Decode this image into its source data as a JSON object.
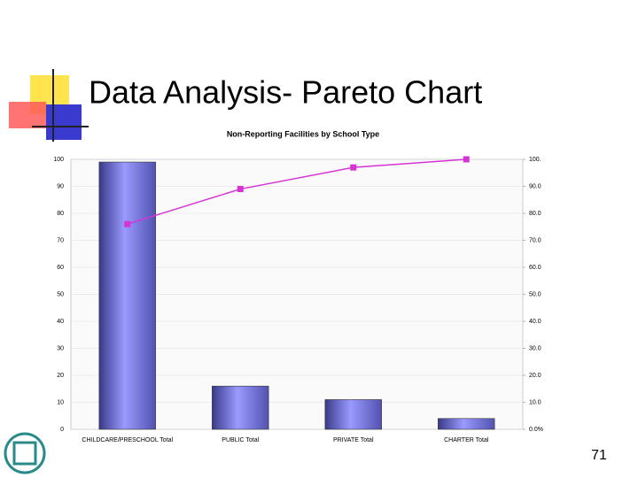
{
  "slide_title": "Data Analysis- Pareto Chart",
  "page_number": "71",
  "chart_data": {
    "type": "pareto",
    "title": "Non-Reporting Facilities by School Type",
    "categories": [
      "CHILDCARE/PRESCHOOL Total",
      "PUBLIC Total",
      "PRIVATE Total",
      "CHARTER Total"
    ],
    "series": [
      {
        "type": "bar",
        "color": "#8484f0",
        "values": [
          99,
          16,
          11,
          4
        ]
      },
      {
        "type": "line",
        "color": "#d633d6",
        "axis": "y2",
        "values": [
          76,
          89,
          97,
          100
        ]
      }
    ],
    "ylim": [
      0,
      100
    ],
    "yticks": [
      0,
      10,
      20,
      30,
      40,
      50,
      60,
      70,
      80,
      90,
      100
    ],
    "y2lim": [
      0,
      100
    ],
    "y2ticks": [
      {
        "value": 0,
        "label": "0.0%"
      },
      {
        "value": 10,
        "label": "10.0"
      },
      {
        "value": 20,
        "label": "20.0"
      },
      {
        "value": 30,
        "label": "30.0"
      },
      {
        "value": 40,
        "label": "40.0"
      },
      {
        "value": 50,
        "label": "50.0"
      },
      {
        "value": 60,
        "label": "60.0"
      },
      {
        "value": 70,
        "label": "70.0"
      },
      {
        "value": 80,
        "label": "80.0"
      },
      {
        "value": 90,
        "label": "90.0"
      },
      {
        "value": 100,
        "label": "100."
      }
    ],
    "grid": true
  }
}
